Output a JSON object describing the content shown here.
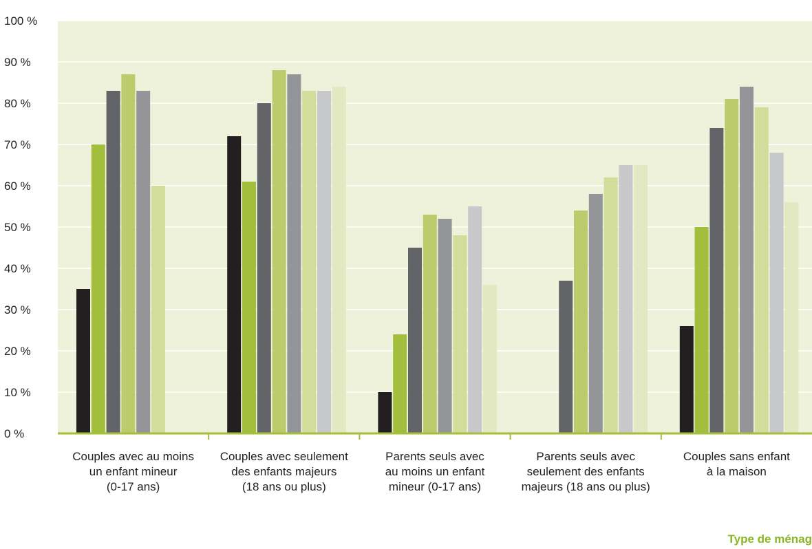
{
  "chart_data": {
    "type": "bar",
    "categories": [
      [
        "Couples avec au moins",
        "un enfant mineur",
        "(0-17 ans)"
      ],
      [
        "Couples avec seulement",
        "des enfants majeurs",
        "(18 ans ou plus)"
      ],
      [
        "Parents seuls avec",
        "au moins un enfant",
        "mineur (0-17 ans)"
      ],
      [
        "Parents seuls avec",
        "seulement des enfants",
        "majeurs (18 ans ou plus)"
      ],
      [
        "Couples sans enfant",
        "à la maison"
      ]
    ],
    "series": [
      {
        "values": [
          35,
          72,
          10,
          null,
          26
        ]
      },
      {
        "values": [
          70,
          61,
          24,
          null,
          50
        ]
      },
      {
        "values": [
          83,
          80,
          45,
          37,
          74
        ]
      },
      {
        "values": [
          87,
          88,
          53,
          54,
          81
        ]
      },
      {
        "values": [
          83,
          87,
          52,
          58,
          84
        ]
      },
      {
        "values": [
          60,
          83,
          48,
          62,
          79
        ]
      },
      {
        "values": [
          null,
          83,
          55,
          65,
          68
        ]
      },
      {
        "values": [
          null,
          84,
          36,
          65,
          56
        ]
      }
    ],
    "series_colors": [
      "#231f20",
      "#a3bd3c",
      "#636467",
      "#bccc6d",
      "#939598",
      "#d2dc9b",
      "#c7c8ca",
      "#e2e9c2"
    ],
    "ylim": [
      0,
      100
    ],
    "yticks": [
      0,
      10,
      20,
      30,
      40,
      50,
      60,
      70,
      80,
      90,
      100
    ],
    "ytick_labels": [
      "0 %",
      "10 %",
      "20 %",
      "30 %",
      "40 %",
      "50 %",
      "60 %",
      "70 %",
      "80 %",
      "90 %",
      "100 %"
    ],
    "xlabel": "Type de ménag",
    "grid": true,
    "background_color": "#eef2da",
    "axis_color": "#a3bd3c",
    "xlabel_color": "#8cb523"
  }
}
